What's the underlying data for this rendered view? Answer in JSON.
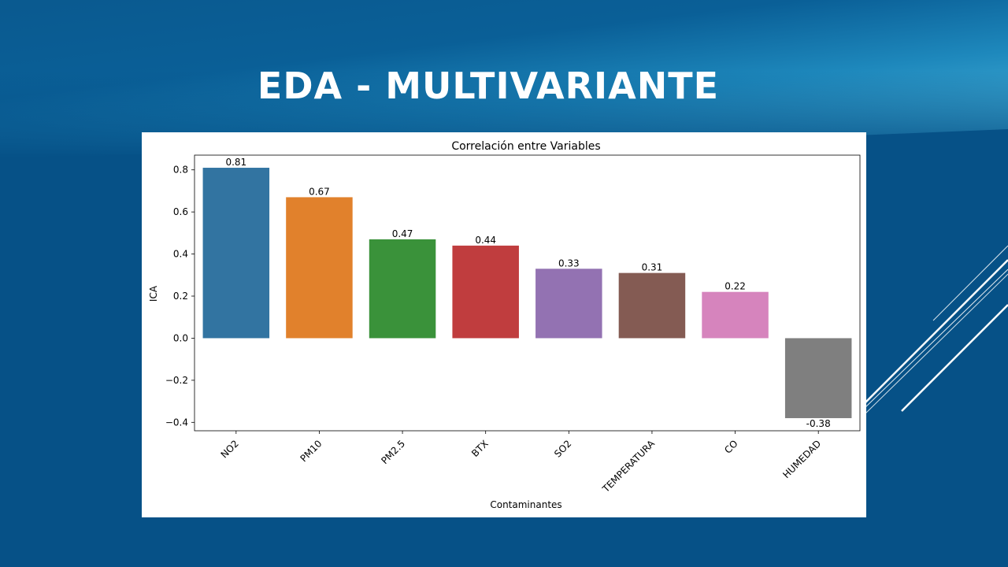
{
  "slide": {
    "title": "EDA - MULTIVARIANTE"
  },
  "chart_data": {
    "type": "bar",
    "title": "Correlación entre Variables",
    "xlabel": "Contaminantes",
    "ylabel": "ICA",
    "categories": [
      "NO2",
      "PM10",
      "PM2.5",
      "BTX",
      "SO2",
      "TEMPERATURA",
      "CO",
      "HUMEDAD"
    ],
    "values": [
      0.81,
      0.67,
      0.47,
      0.44,
      0.33,
      0.31,
      0.22,
      -0.38
    ],
    "value_labels": [
      "0.81",
      "0.67",
      "0.47",
      "0.44",
      "0.33",
      "0.31",
      "0.22",
      "-0.38"
    ],
    "colors": [
      "#3274a1",
      "#e1812c",
      "#3a923a",
      "#c03d3e",
      "#9372b2",
      "#845b53",
      "#d684bd",
      "#7f7f7f"
    ],
    "yticks": [
      -0.4,
      -0.2,
      0.0,
      0.2,
      0.4,
      0.6,
      0.8
    ],
    "ytick_labels": [
      "−0.4",
      "−0.2",
      "0.0",
      "0.2",
      "0.4",
      "0.6",
      "0.8"
    ],
    "ylim": [
      -0.44,
      0.87
    ],
    "grid": false,
    "legend": "none"
  }
}
